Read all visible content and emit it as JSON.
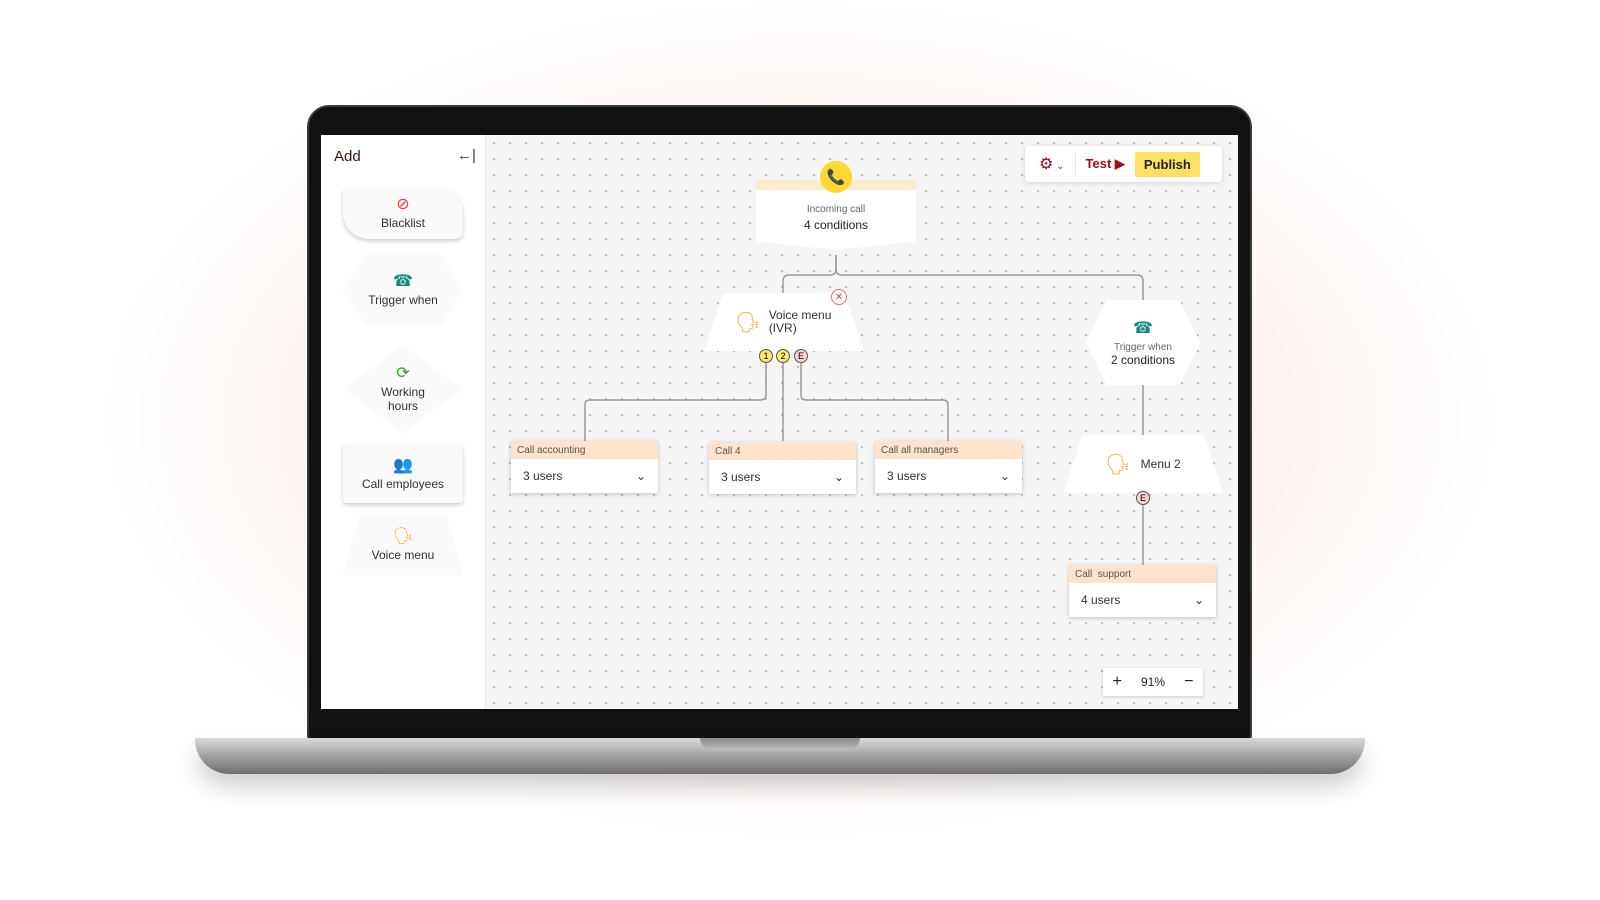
{
  "sidebar": {
    "title": "Add",
    "collapse_icon": "arrow-left-bar-icon",
    "items": [
      {
        "label": "Blacklist",
        "icon": "blocked-icon"
      },
      {
        "label": "Trigger when",
        "icon": "phone-keypad-icon"
      },
      {
        "label": "Working hours",
        "icon": "clock-icon"
      },
      {
        "label": "Call employees",
        "icon": "people-icon"
      },
      {
        "label": "Voice menu",
        "icon": "voice-person-icon"
      }
    ]
  },
  "toolbar": {
    "settings_icon": "gear-icon",
    "test_label": "Test ▶",
    "publish_label": "Publish"
  },
  "nodes": {
    "incoming": {
      "title": "Incoming call",
      "subtitle": "4 conditions"
    },
    "ivr": {
      "title": "Voice menu (IVR)",
      "outputs": [
        "1",
        "2",
        "E"
      ]
    },
    "trigger": {
      "title": "Trigger when",
      "subtitle": "2 conditions"
    },
    "menu2": {
      "title": "Menu 2",
      "outputs": [
        "E"
      ]
    },
    "calls": [
      {
        "header": "Call accounting",
        "value": "3 users"
      },
      {
        "header": "Call 4",
        "value": "3 users"
      },
      {
        "header": "Call all managers",
        "value": "3 users"
      },
      {
        "header": "Call  support",
        "value": "4 users"
      }
    ]
  },
  "zoom": {
    "plus": "+",
    "level": "91%",
    "minus": "−"
  },
  "colors": {
    "accent": "#ffe066",
    "brand": "#a10d0d",
    "card_header": "#fde3cc"
  }
}
